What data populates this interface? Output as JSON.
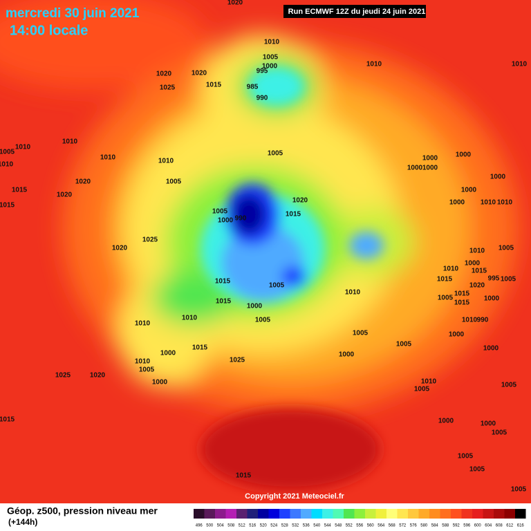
{
  "header": {
    "date": "mercredi 30 juin 2021",
    "time": "14:00 locale",
    "run": "Run ECMWF 12Z du jeudi 24 juin 2021"
  },
  "footer": {
    "field": "Géop. z500, pression niveau mer",
    "lead": "(+144h)",
    "copyright": "Copyright 2021 Meteociel.fr"
  },
  "scale": {
    "values": [
      496,
      500,
      504,
      508,
      512,
      516,
      520,
      524,
      528,
      532,
      536,
      540,
      544,
      548,
      552,
      556,
      560,
      564,
      568,
      572,
      576,
      580,
      584,
      588,
      592,
      596,
      600,
      604,
      608,
      612,
      616
    ],
    "colors": [
      "#2a0d2a",
      "#5a1a5a",
      "#8c1c8c",
      "#b41eb4",
      "#5a2070",
      "#20207a",
      "#0000a0",
      "#0000dc",
      "#1e40ff",
      "#3c78ff",
      "#50aaff",
      "#00dcff",
      "#3cf0e6",
      "#50fab4",
      "#50e650",
      "#8cf03c",
      "#c8f03c",
      "#f0f03c",
      "#ffff78",
      "#ffe650",
      "#ffc83c",
      "#ffaa28",
      "#ff8c1e",
      "#ff6e1e",
      "#ff501e",
      "#f0321e",
      "#e61e1e",
      "#c81414",
      "#aa0a0a",
      "#8c0000",
      "#000000"
    ]
  },
  "isobars": [
    "1020",
    "1010",
    "1005",
    "1000",
    "995",
    "985",
    "990",
    "1010",
    "1010",
    "1020",
    "1020",
    "1025",
    "1015",
    "1005",
    "1010",
    "1010",
    "1005",
    "1010",
    "1010",
    "1010",
    "1005",
    "1000",
    "1000",
    "1000",
    "1000",
    "1020",
    "1015",
    "1020",
    "1015",
    "1020",
    "1000",
    "1000",
    "1000",
    "1010",
    "1010",
    "1005",
    "990",
    "1000",
    "1015",
    "1020",
    "1025",
    "1010",
    "1005",
    "1010",
    "1000",
    "1015",
    "1015",
    "995",
    "1005",
    "1015",
    "1005",
    "1020",
    "1005",
    "1015",
    "1015",
    "1000",
    "1015",
    "1000",
    "1010",
    "1010",
    "1005",
    "1010",
    "1010",
    "990",
    "1005",
    "1000",
    "1015",
    "1000",
    "1000",
    "1005",
    "1000",
    "1010",
    "1025",
    "1005",
    "1025",
    "1020",
    "1000",
    "1010",
    "1005",
    "1005",
    "1015",
    "1000",
    "1000",
    "1005",
    "1005",
    "1005",
    "1015",
    "1005"
  ]
}
